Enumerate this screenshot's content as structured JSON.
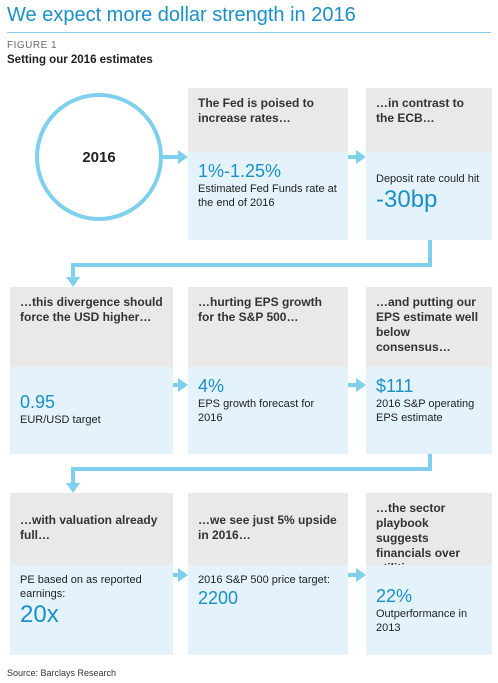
{
  "header": {
    "title": "We expect more dollar strength in 2016",
    "figure_label": "FIGURE 1",
    "subtitle": "Setting our 2016 estimates"
  },
  "colors": {
    "accent": "#1a90c6",
    "connector": "#7fd0ec",
    "grey_box": "#e9e9e9",
    "blue_box": "#e4f3fb"
  },
  "circle": {
    "year": "2016"
  },
  "row1": {
    "fed": {
      "heading": "The Fed is poised to increase rates…",
      "value": "1%-1.25%",
      "detail": "Estimated Fed Funds rate at the end of 2016"
    },
    "ecb": {
      "heading": "…in contrast to the ECB…",
      "detail": "Deposit rate could hit",
      "value": "-30bp"
    }
  },
  "row2": {
    "usd": {
      "heading": "…this divergence should force the USD higher…",
      "value": "0.95",
      "detail": "EUR/USD target"
    },
    "eps": {
      "heading": "…hurting EPS growth for the S&P 500…",
      "value": "4%",
      "detail": "EPS growth forecast for 2016"
    },
    "estimate": {
      "heading": "…and putting our EPS estimate well below consensus…",
      "value": "$111",
      "detail": "2016 S&P operating EPS estimate"
    }
  },
  "row3": {
    "valuation": {
      "heading": "…with valuation already full…",
      "detail": "PE based on as reported earnings:",
      "value": "20x"
    },
    "upside": {
      "heading": "…we see just 5% upside in 2016…",
      "detail": "2016 S&P 500 price target:",
      "value": "2200"
    },
    "sector": {
      "heading": "…the sector playbook suggests financials over utilities.",
      "value": "22%",
      "detail": "Outperformance in 2013"
    }
  },
  "footer": {
    "source": "Source: Barclays Research"
  }
}
